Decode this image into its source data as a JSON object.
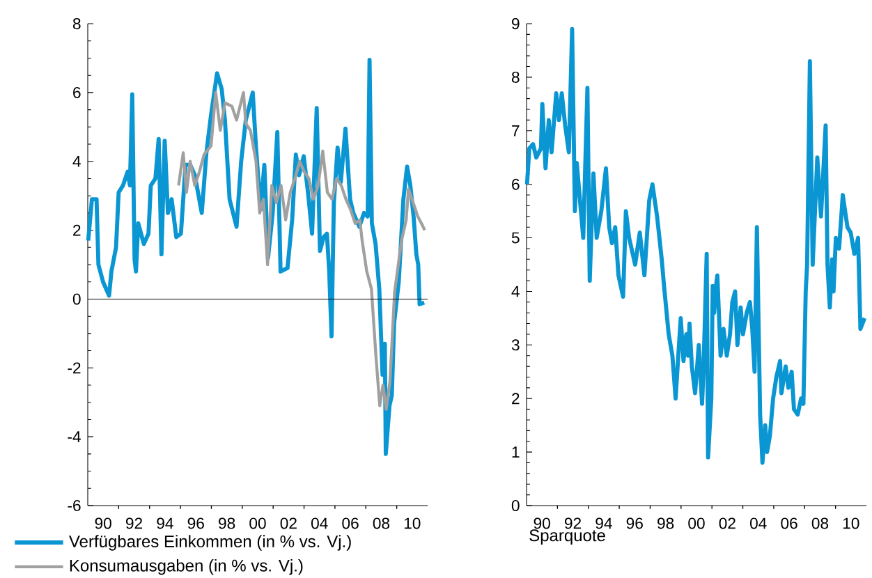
{
  "chart_data": [
    {
      "type": "line",
      "xlim": [
        1989,
        2011
      ],
      "ylim": [
        -6,
        8
      ],
      "yticks": [
        -6,
        -4,
        -2,
        0,
        2,
        4,
        6,
        8
      ],
      "xticks": [
        {
          "value": 1990,
          "label": "90"
        },
        {
          "value": 1992,
          "label": "92"
        },
        {
          "value": 1994,
          "label": "94"
        },
        {
          "value": 1996,
          "label": "96"
        },
        {
          "value": 1998,
          "label": "98"
        },
        {
          "value": 2000,
          "label": "00"
        },
        {
          "value": 2002,
          "label": "02"
        },
        {
          "value": 2004,
          "label": "04"
        },
        {
          "value": 2006,
          "label": "06"
        },
        {
          "value": 2008,
          "label": "08"
        },
        {
          "value": 2010,
          "label": "10"
        }
      ],
      "ref_lines": [
        {
          "axis": "y",
          "value": 0,
          "color": "#000000"
        }
      ],
      "legend": "bottom",
      "series": [
        {
          "name": "Verfügbares Einkommen (in % vs. Vj.)",
          "color": "#0a96d2",
          "x": [
            1989.03,
            1989.27,
            1989.57,
            1989.69,
            1989.99,
            1990.38,
            1990.53,
            1990.83,
            1991.0,
            1991.28,
            1991.58,
            1991.73,
            1991.88,
            1992.03,
            1992.12,
            1992.27,
            1992.63,
            1992.93,
            1993.08,
            1993.38,
            1993.59,
            1993.77,
            1993.98,
            1994.19,
            1994.43,
            1994.73,
            1995.03,
            1995.33,
            1995.63,
            1995.93,
            1996.38,
            1996.68,
            1996.98,
            1997.37,
            1997.67,
            1997.88,
            1998.18,
            1998.63,
            1998.93,
            1999.23,
            1999.68,
            1999.89,
            2000.19,
            2000.43,
            2000.67,
            2000.97,
            2001.27,
            2001.48,
            2001.93,
            2002.23,
            2002.47,
            2002.68,
            2002.98,
            2003.28,
            2003.52,
            2003.82,
            2004.03,
            2004.27,
            2004.48,
            2004.63,
            2004.78,
            2004.93,
            2005.17,
            2005.38,
            2005.68,
            2005.98,
            2006.19,
            2006.58,
            2006.88,
            2007.12,
            2007.24,
            2007.39,
            2007.63,
            2007.87,
            2008.08,
            2008.23,
            2008.29,
            2008.53,
            2008.68,
            2008.83,
            2009.13,
            2009.43,
            2009.67,
            2009.88,
            2010.09,
            2010.27,
            2010.39,
            2010.48,
            2010.78
          ],
          "values": [
            1.7,
            2.9,
            2.9,
            1.0,
            0.5,
            0.1,
            0.8,
            1.5,
            3.1,
            3.3,
            3.7,
            3.3,
            5.95,
            1.15,
            0.8,
            2.2,
            1.6,
            1.9,
            3.3,
            3.5,
            4.65,
            1.3,
            4.6,
            2.5,
            2.9,
            1.8,
            1.9,
            3.9,
            3.9,
            3.6,
            2.5,
            4.25,
            5.35,
            6.56,
            6.1,
            5.2,
            2.9,
            2.1,
            4.0,
            5.2,
            6.0,
            4.4,
            2.6,
            3.9,
            1.2,
            2.5,
            4.85,
            0.8,
            0.9,
            2.3,
            4.2,
            3.6,
            4.15,
            3.0,
            1.9,
            5.55,
            1.4,
            1.8,
            1.9,
            0.8,
            -1.08,
            2.8,
            4.4,
            3.4,
            4.95,
            2.9,
            2.5,
            2.1,
            2.5,
            2.4,
            6.95,
            2.2,
            1.6,
            0.3,
            -2.2,
            -1.3,
            -4.5,
            -3.1,
            -2.8,
            -0.7,
            0.5,
            2.9,
            3.85,
            3.3,
            2.4,
            1.3,
            1.0,
            -0.15,
            -0.1
          ]
        },
        {
          "name": "Konsumausgaben (in % vs. Vj.)",
          "color": "#a0a0a0",
          "x": [
            1994.88,
            1995.18,
            1995.39,
            1995.63,
            1995.93,
            1996.23,
            1996.53,
            1996.98,
            1997.28,
            1997.58,
            1997.88,
            1998.33,
            1998.63,
            1999.08,
            1999.23,
            1999.53,
            1999.89,
            2000.13,
            2000.37,
            2000.64,
            2000.91,
            2001.21,
            2001.51,
            2001.81,
            2002.11,
            2002.41,
            2002.71,
            2003.01,
            2003.31,
            2003.61,
            2003.91,
            2004.21,
            2004.51,
            2004.81,
            2005.11,
            2005.41,
            2005.71,
            2006.01,
            2006.31,
            2006.61,
            2006.76,
            2007.06,
            2007.36,
            2007.66,
            2007.9,
            2008.11,
            2008.32,
            2008.56,
            2008.86,
            2009.1,
            2009.31,
            2009.61,
            2009.76,
            2010.06,
            2010.36,
            2010.6,
            2010.81
          ],
          "values": [
            3.3,
            4.25,
            3.1,
            4.0,
            3.3,
            3.7,
            4.2,
            4.45,
            6.0,
            4.9,
            5.7,
            5.6,
            5.2,
            6.0,
            5.1,
            4.9,
            4.0,
            2.5,
            2.9,
            1.0,
            3.3,
            2.8,
            3.3,
            2.3,
            3.1,
            3.5,
            4.0,
            3.7,
            3.5,
            2.9,
            3.3,
            4.3,
            3.1,
            2.9,
            3.5,
            3.3,
            2.9,
            2.6,
            2.2,
            2.3,
            1.7,
            0.8,
            0.3,
            -1.7,
            -3.1,
            -2.5,
            -3.2,
            -2.4,
            0.2,
            1.0,
            1.7,
            2.3,
            3.2,
            2.8,
            2.4,
            2.2,
            2.0
          ]
        }
      ]
    },
    {
      "type": "line",
      "xlabel": "Sparquote",
      "xlim": [
        1989,
        2011
      ],
      "ylim": [
        0,
        9
      ],
      "yticks": [
        0,
        1,
        2,
        3,
        4,
        5,
        6,
        7,
        8,
        9
      ],
      "xticks": [
        {
          "value": 1990,
          "label": "90"
        },
        {
          "value": 1992,
          "label": "92"
        },
        {
          "value": 1994,
          "label": "94"
        },
        {
          "value": 1996,
          "label": "96"
        },
        {
          "value": 1998,
          "label": "98"
        },
        {
          "value": 2000,
          "label": "00"
        },
        {
          "value": 2002,
          "label": "02"
        },
        {
          "value": 2004,
          "label": "04"
        },
        {
          "value": 2006,
          "label": "06"
        },
        {
          "value": 2008,
          "label": "08"
        },
        {
          "value": 2010,
          "label": "10"
        }
      ],
      "series": [
        {
          "color": "#0a96d2",
          "x": [
            1989.03,
            1989.18,
            1989.42,
            1989.63,
            1989.93,
            1990.02,
            1990.23,
            1990.44,
            1990.62,
            1990.92,
            1991.1,
            1991.28,
            1991.5,
            1991.74,
            1991.95,
            1992.13,
            1992.25,
            1992.49,
            1992.67,
            1992.94,
            1993.09,
            1993.33,
            1993.54,
            1993.84,
            1994.14,
            1994.35,
            1994.53,
            1994.74,
            1994.95,
            1995.25,
            1995.43,
            1995.64,
            1996.03,
            1996.33,
            1996.63,
            1996.94,
            1997.15,
            1997.45,
            1997.75,
            1997.9,
            1998.2,
            1998.44,
            1998.65,
            1998.8,
            1998.98,
            1999.16,
            1999.34,
            1999.46,
            1999.55,
            1999.7,
            1999.91,
            2000.15,
            2000.36,
            2000.45,
            2000.66,
            2000.75,
            2000.96,
            2001.05,
            2001.14,
            2001.26,
            2001.35,
            2001.56,
            2001.75,
            2001.96,
            2002.17,
            2002.32,
            2002.5,
            2002.65,
            2002.86,
            2003.01,
            2003.25,
            2003.46,
            2003.61,
            2003.76,
            2003.91,
            2004.12,
            2004.27,
            2004.45,
            2004.57,
            2004.75,
            2004.96,
            2005.17,
            2005.41,
            2005.5,
            2005.77,
            2005.95,
            2006.16,
            2006.31,
            2006.55,
            2006.77,
            2006.92,
            2007.07,
            2007.16,
            2007.34,
            2007.52,
            2007.82,
            2008.06,
            2008.36,
            2008.48,
            2008.63,
            2008.78,
            2008.87,
            2009.02,
            2009.23,
            2009.47,
            2009.77,
            2009.98,
            2010.22,
            2010.46,
            2010.61,
            2010.88
          ],
          "values": [
            6.0,
            6.67,
            6.75,
            6.5,
            6.67,
            7.5,
            6.3,
            7.2,
            6.6,
            7.7,
            7.2,
            7.7,
            7.1,
            6.6,
            8.9,
            5.5,
            6.4,
            5.6,
            5.0,
            7.8,
            4.2,
            6.2,
            5.0,
            5.5,
            6.3,
            5.2,
            4.9,
            5.2,
            4.3,
            3.9,
            5.5,
            5.0,
            4.5,
            5.1,
            4.3,
            5.7,
            6.0,
            5.4,
            4.6,
            4.1,
            3.2,
            2.8,
            2.0,
            2.7,
            3.5,
            2.7,
            3.2,
            2.8,
            3.4,
            2.6,
            2.1,
            3.0,
            1.9,
            2.5,
            4.7,
            0.9,
            2.0,
            4.1,
            3.6,
            4.1,
            4.3,
            2.8,
            3.3,
            2.8,
            3.2,
            3.8,
            4.0,
            3.0,
            3.7,
            3.2,
            3.6,
            3.8,
            3.3,
            2.5,
            5.2,
            1.7,
            0.8,
            1.5,
            1.0,
            1.3,
            2.0,
            2.4,
            2.7,
            2.1,
            2.6,
            2.2,
            2.5,
            1.8,
            1.7,
            2.0,
            1.9,
            4.0,
            4.5,
            8.3,
            4.5,
            6.5,
            5.4,
            7.1,
            4.5,
            3.7,
            4.6,
            4.0,
            5.0,
            4.8,
            5.8,
            5.2,
            5.1,
            4.7,
            5.0,
            3.3,
            3.5
          ]
        }
      ]
    }
  ]
}
